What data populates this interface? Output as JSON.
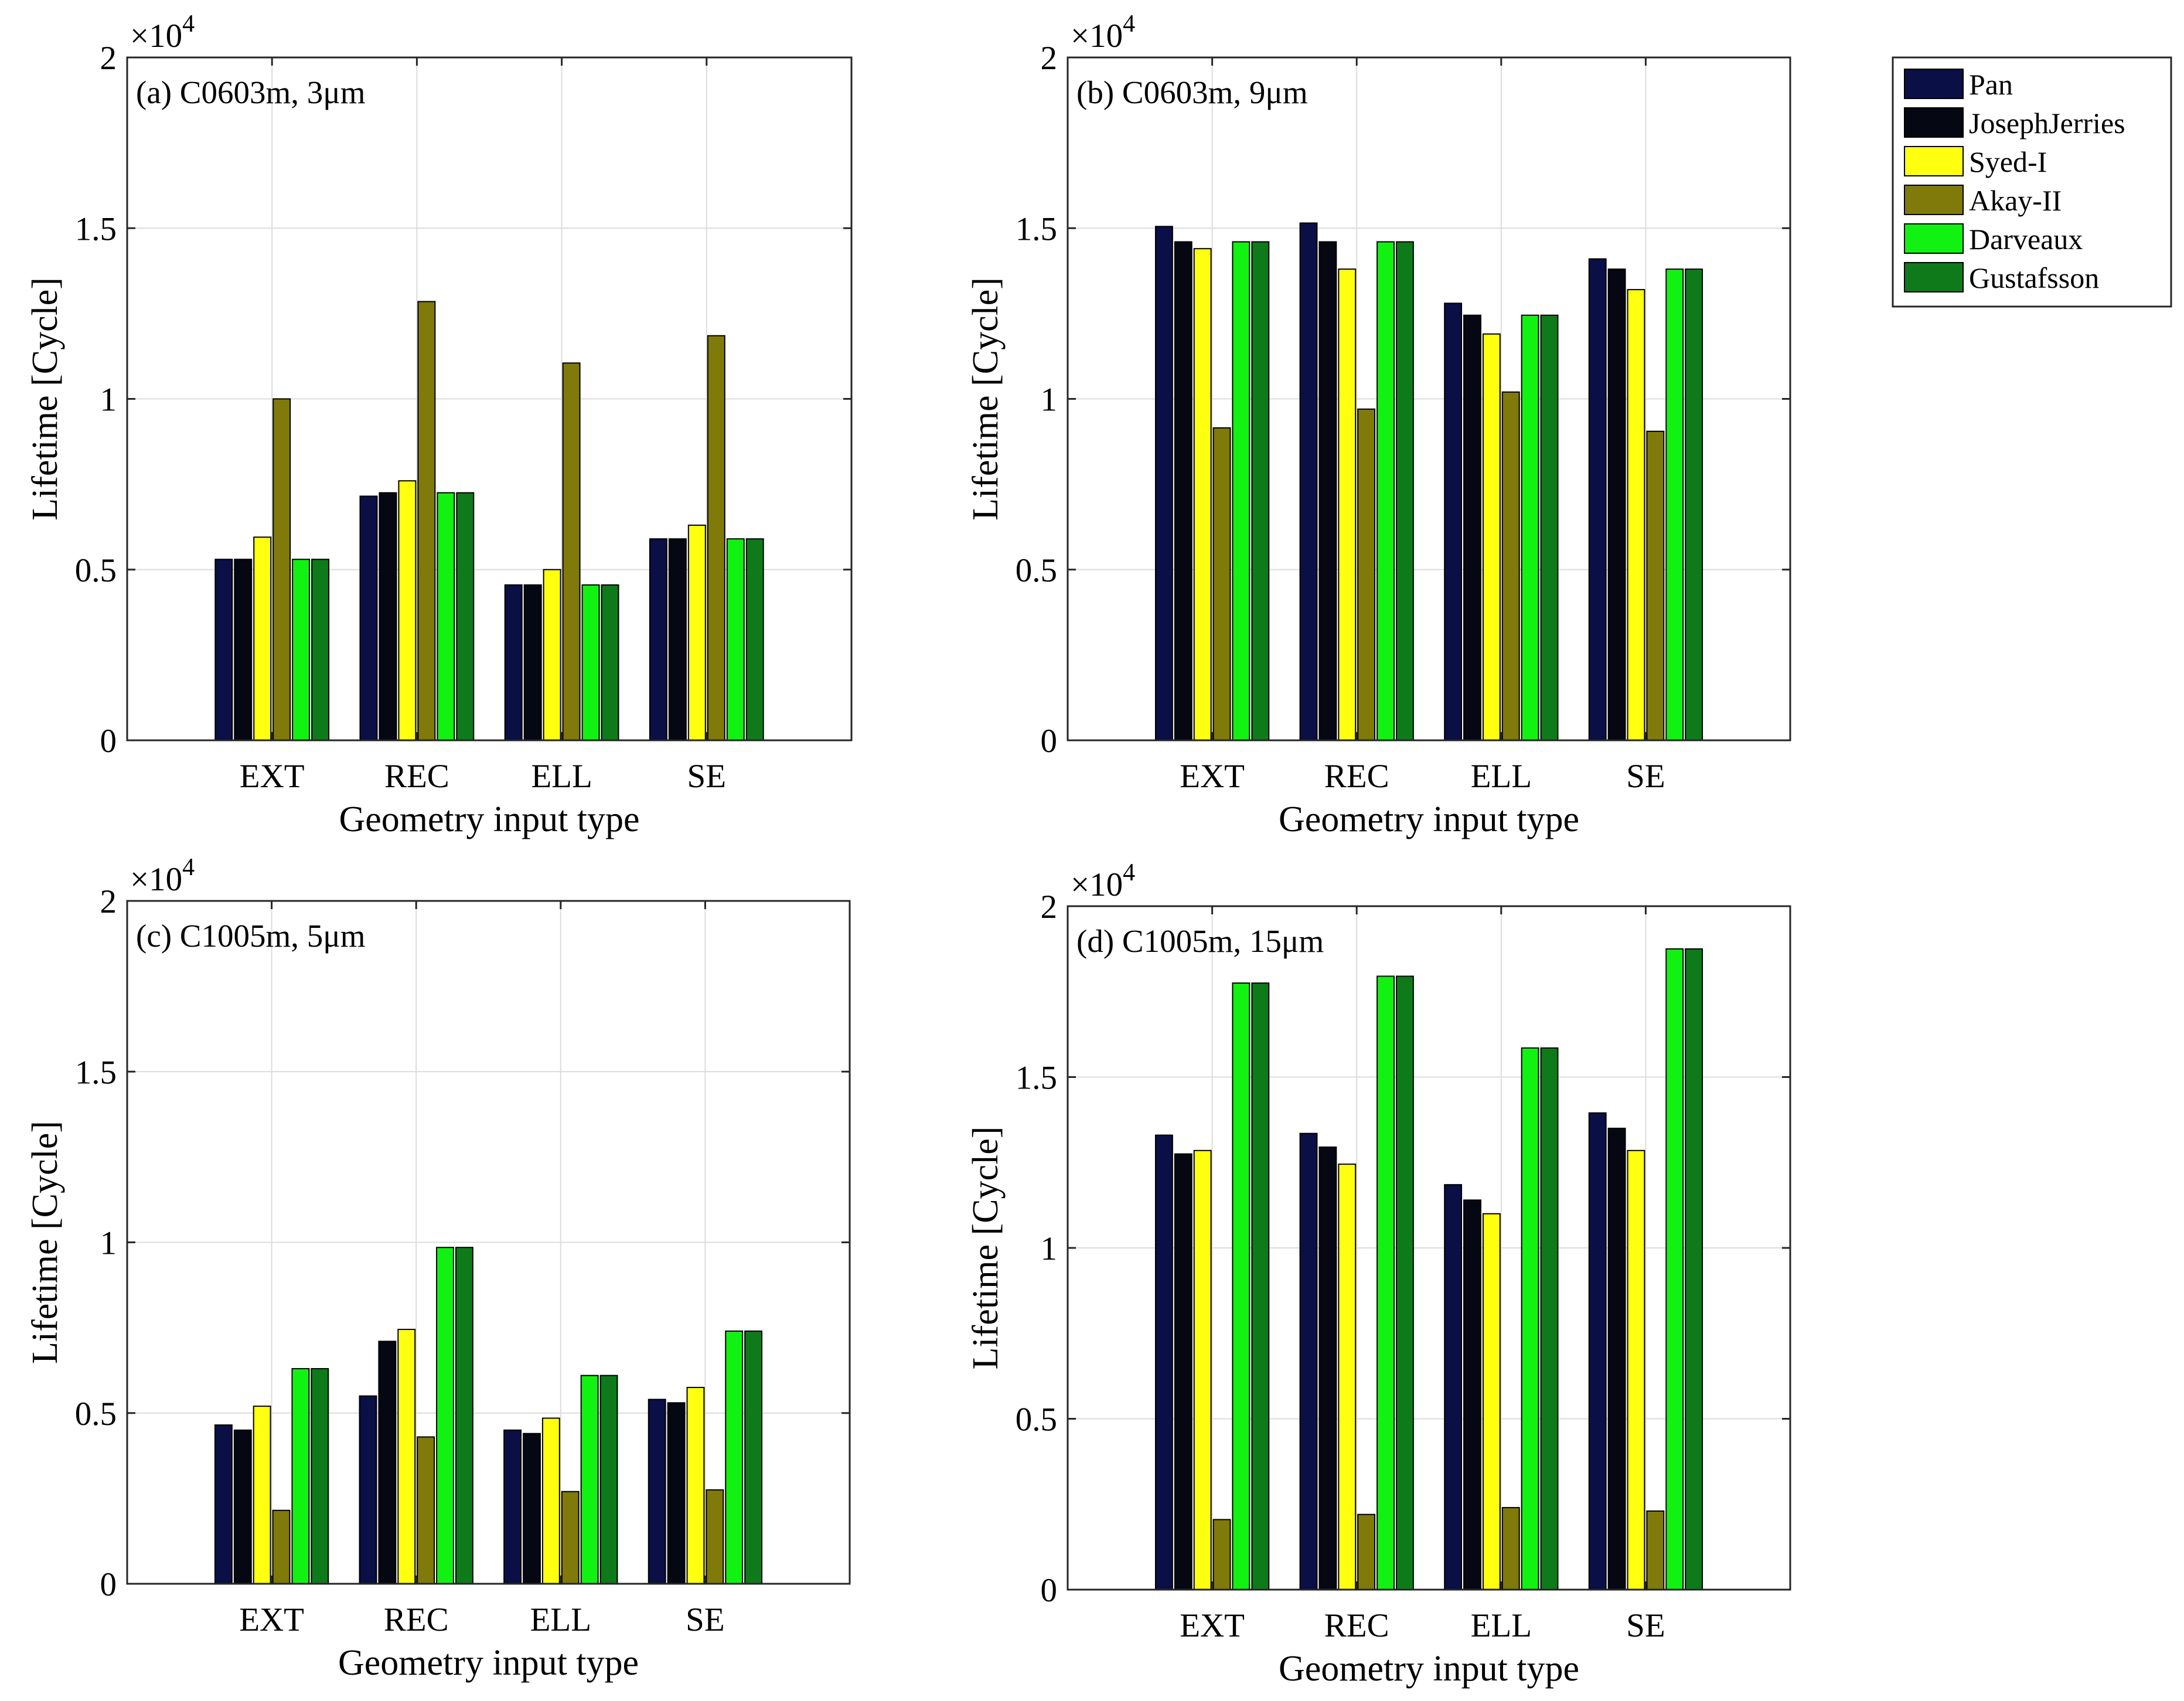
{
  "chart_data": [
    {
      "type": "bar",
      "title": "(a) C0603m, 3μm",
      "xlabel": "Geometry input type",
      "ylabel": "Lifetime [Cycle]",
      "y_multiplier": "×10",
      "y_multiplier_exp": "4",
      "ylim": [
        0,
        20000
      ],
      "yticks": [
        0,
        5000,
        10000,
        15000,
        20000
      ],
      "ytick_labels": [
        "0",
        "0.5",
        "1",
        "1.5",
        "2"
      ],
      "categories": [
        "EXT",
        "REC",
        "ELL",
        "SE"
      ],
      "grid": true,
      "series": [
        {
          "name": "Pan",
          "values": [
            5300,
            7150,
            4550,
            5900
          ]
        },
        {
          "name": "JosephJerries",
          "values": [
            5300,
            7250,
            4550,
            5900
          ]
        },
        {
          "name": "Syed-I",
          "values": [
            5950,
            7600,
            5000,
            6300
          ]
        },
        {
          "name": "Akay-II",
          "values": [
            10000,
            12850,
            11050,
            11850
          ]
        },
        {
          "name": "Darveaux",
          "values": [
            5300,
            7250,
            4550,
            5900
          ]
        },
        {
          "name": "Gustafsson",
          "values": [
            5300,
            7250,
            4550,
            5900
          ]
        }
      ]
    },
    {
      "type": "bar",
      "title": "(b) C0603m, 9μm",
      "xlabel": "Geometry input type",
      "ylabel": "Lifetime [Cycle]",
      "y_multiplier": "×10",
      "y_multiplier_exp": "4",
      "ylim": [
        0,
        20000
      ],
      "yticks": [
        0,
        5000,
        10000,
        15000,
        20000
      ],
      "ytick_labels": [
        "0",
        "0.5",
        "1",
        "1.5",
        "2"
      ],
      "categories": [
        "EXT",
        "REC",
        "ELL",
        "SE"
      ],
      "grid": true,
      "series": [
        {
          "name": "Pan",
          "values": [
            15050,
            15150,
            12800,
            14100
          ]
        },
        {
          "name": "JosephJerries",
          "values": [
            14600,
            14600,
            12450,
            13800
          ]
        },
        {
          "name": "Syed-I",
          "values": [
            14400,
            13800,
            11900,
            13200
          ]
        },
        {
          "name": "Akay-II",
          "values": [
            9150,
            9700,
            10200,
            9050
          ]
        },
        {
          "name": "Darveaux",
          "values": [
            14600,
            14600,
            12450,
            13800
          ]
        },
        {
          "name": "Gustafsson",
          "values": [
            14600,
            14600,
            12450,
            13800
          ]
        }
      ]
    },
    {
      "type": "bar",
      "title": "(c) C1005m,   5μm",
      "xlabel": "Geometry input type",
      "ylabel": "Lifetime [Cycle]",
      "y_multiplier": "×10",
      "y_multiplier_exp": "4",
      "ylim": [
        0,
        20000
      ],
      "yticks": [
        0,
        5000,
        10000,
        15000,
        20000
      ],
      "ytick_labels": [
        "0",
        "0.5",
        "1",
        "1.5",
        "2"
      ],
      "categories": [
        "EXT",
        "REC",
        "ELL",
        "SE"
      ],
      "grid": true,
      "series": [
        {
          "name": "Pan",
          "values": [
            4650,
            5500,
            4500,
            5400
          ]
        },
        {
          "name": "JosephJerries",
          "values": [
            4500,
            7100,
            4400,
            5300
          ]
        },
        {
          "name": "Syed-I",
          "values": [
            5200,
            7450,
            4850,
            5750
          ]
        },
        {
          "name": "Akay-II",
          "values": [
            2150,
            4300,
            2700,
            2750
          ]
        },
        {
          "name": "Darveaux",
          "values": [
            6300,
            9850,
            6100,
            7400
          ]
        },
        {
          "name": "Gustafsson",
          "values": [
            6300,
            9850,
            6100,
            7400
          ]
        }
      ]
    },
    {
      "type": "bar",
      "title": "(d) C1005m,  15μm",
      "xlabel": "Geometry input type",
      "ylabel": "Lifetime [Cycle]",
      "y_multiplier": "×10",
      "y_multiplier_exp": "4",
      "ylim": [
        0,
        20000
      ],
      "yticks": [
        0,
        5000,
        10000,
        15000,
        20000
      ],
      "ytick_labels": [
        "0",
        "0.5",
        "1",
        "1.5",
        "2"
      ],
      "categories": [
        "EXT",
        "REC",
        "ELL",
        "SE"
      ],
      "grid": true,
      "series": [
        {
          "name": "Pan",
          "values": [
            13300,
            13350,
            11850,
            13950
          ]
        },
        {
          "name": "JosephJerries",
          "values": [
            12750,
            12950,
            11400,
            13500
          ]
        },
        {
          "name": "Syed-I",
          "values": [
            12850,
            12450,
            11000,
            12850
          ]
        },
        {
          "name": "Akay-II",
          "values": [
            2050,
            2200,
            2400,
            2300
          ]
        },
        {
          "name": "Darveaux",
          "values": [
            17750,
            17950,
            15850,
            18750
          ]
        },
        {
          "name": "Gustafsson",
          "values": [
            17750,
            17950,
            15850,
            18750
          ]
        }
      ]
    }
  ],
  "legend": {
    "placement": "top-right",
    "entries": [
      "Pan",
      "JosephJerries",
      "Syed-I",
      "Akay-II",
      "Darveaux",
      "Gustafsson"
    ]
  },
  "series_colors": {
    "Pan": "#0a0f46",
    "JosephJerries": "#050812",
    "Syed-I": "#ffff10",
    "Akay-II": "#7f7a0a",
    "Darveaux": "#12f212",
    "Gustafsson": "#0e7a1a"
  }
}
